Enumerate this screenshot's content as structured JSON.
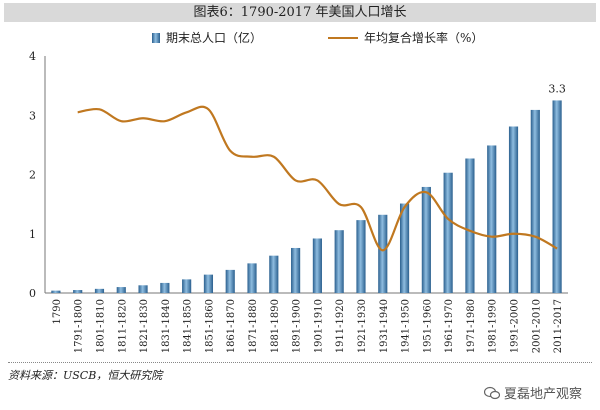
{
  "title": "图表6：1790-2017 年美国人口增长",
  "source": "资料来源：USCB，恒大研究院",
  "watermark": "夏磊地产观察",
  "colors": {
    "bar": "#3f7fb4",
    "bar_dark": "#2a5f8e",
    "bar_light": "#8fbde0",
    "line": "#c07820"
  },
  "chart_data": {
    "type": "bar",
    "categories": [
      "1790",
      "1791-1800",
      "1801-1810",
      "1811-1820",
      "1821-1830",
      "1831-1840",
      "1841-1850",
      "1851-1860",
      "1861-1870",
      "1871-1880",
      "1881-1890",
      "1891-1900",
      "1901-1910",
      "1911-1920",
      "1921-1930",
      "1931-1940",
      "1941-1950",
      "1951-1960",
      "1961-1970",
      "1971-1980",
      "1981-1990",
      "1991-2000",
      "2001-2010",
      "2011-2017"
    ],
    "series": [
      {
        "name": "期末总人口（亿）",
        "type": "bar",
        "values": [
          0.04,
          0.05,
          0.07,
          0.1,
          0.13,
          0.17,
          0.23,
          0.31,
          0.39,
          0.5,
          0.63,
          0.76,
          0.92,
          1.06,
          1.23,
          1.32,
          1.51,
          1.79,
          2.03,
          2.27,
          2.49,
          2.81,
          3.09,
          3.25
        ]
      },
      {
        "name": "年均复合增长率（%）",
        "type": "line",
        "values": [
          null,
          3.05,
          3.1,
          2.9,
          2.95,
          2.9,
          3.05,
          3.1,
          2.4,
          2.3,
          2.3,
          1.9,
          1.9,
          1.5,
          1.45,
          0.72,
          1.45,
          1.7,
          1.25,
          1.05,
          0.95,
          1.0,
          0.95,
          0.75
        ]
      }
    ],
    "annotations": [
      {
        "category": "2011-2017",
        "text": "3.3"
      }
    ],
    "ylim": [
      0,
      4
    ],
    "yticks": [
      "0",
      "1",
      "2",
      "3",
      "4"
    ],
    "legend": "top",
    "grid": false
  }
}
